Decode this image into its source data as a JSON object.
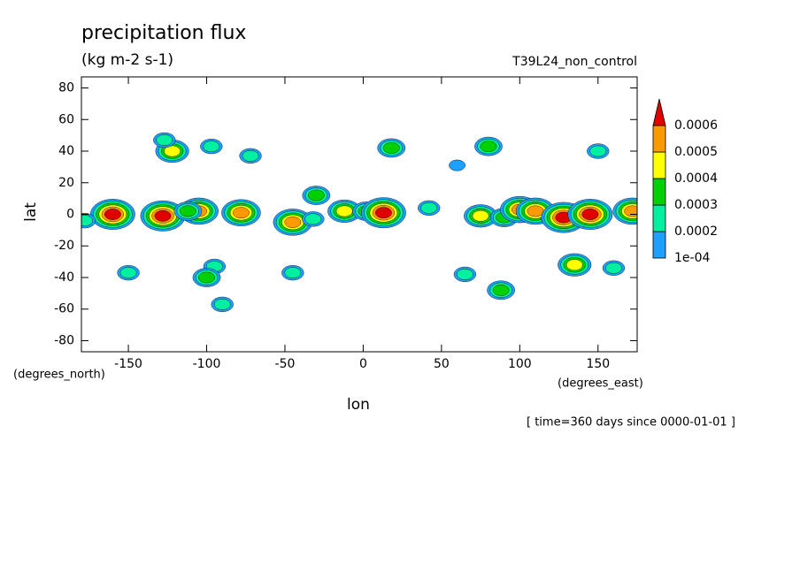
{
  "chart_data": {
    "type": "contour",
    "title": "precipitation flux",
    "subtitle": "(kg m-2 s-1)",
    "run_label": "T39L24_non_control",
    "x_label": "lon",
    "y_label": "lat",
    "x_units": "(degrees_east)",
    "y_units": "(degrees_north)",
    "footnote": "[ time=360 days since 0000-01-01 ]",
    "xlim": [
      -180,
      175
    ],
    "ylim": [
      -87,
      87
    ],
    "xticks": [
      -150,
      -100,
      -50,
      0,
      50,
      100,
      150
    ],
    "yticks": [
      -80,
      -60,
      -40,
      -20,
      0,
      20,
      40,
      60,
      80
    ],
    "levels": [
      {
        "value": 0.0001,
        "label": "1e-04"
      },
      0.0002,
      0.0003,
      0.0004,
      0.0005,
      0.0006
    ],
    "level_colors": [
      "#1ea0ff",
      "#00f0a0",
      "#00d000",
      "#ffff00",
      "#ff9900",
      "#e00000"
    ],
    "contours": {
      "x": [
        -160,
        -128,
        -122,
        -127,
        -105,
        -112,
        -78,
        -72,
        -45,
        -30,
        -32,
        -12,
        2,
        13,
        18,
        42,
        75,
        90,
        80,
        100,
        110,
        128,
        145,
        172,
        -90,
        -95,
        -100,
        88,
        135,
        160,
        -45,
        -150,
        65,
        -97,
        150,
        60,
        -178
      ],
      "y": [
        0,
        -1,
        40,
        47,
        2,
        2,
        1,
        37,
        -5,
        12,
        -3,
        2,
        2,
        1,
        42,
        4,
        -1,
        -2,
        43,
        3,
        2,
        -2,
        0,
        2,
        -57,
        -33,
        -40,
        -48,
        -32,
        -34,
        -37,
        -37,
        -38,
        43,
        40,
        31,
        -4
      ],
      "peak": [
        0.0006,
        0.0006,
        0.0004,
        0.0002,
        0.0005,
        0.0003,
        0.0005,
        0.0002,
        0.0005,
        0.0003,
        0.0002,
        0.0004,
        0.0003,
        0.0006,
        0.0003,
        0.0002,
        0.0004,
        0.0003,
        0.0003,
        0.0005,
        0.0005,
        0.0006,
        0.0006,
        0.0005,
        0.0002,
        0.0002,
        0.0003,
        0.0003,
        0.0004,
        0.0002,
        0.0002,
        0.0002,
        0.0002,
        0.0002,
        0.0002,
        0.0001,
        0.0002
      ]
    }
  }
}
